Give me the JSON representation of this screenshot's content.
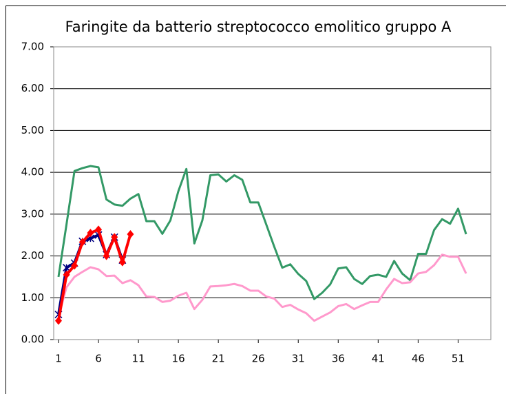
{
  "chart_data": {
    "type": "line",
    "title": "Faringite da batterio streptococco emolitico gruppo A",
    "x": [
      1,
      2,
      3,
      4,
      5,
      6,
      7,
      8,
      9,
      10,
      11,
      12,
      13,
      14,
      15,
      16,
      17,
      18,
      19,
      20,
      21,
      22,
      23,
      24,
      25,
      26,
      27,
      28,
      29,
      30,
      31,
      32,
      33,
      34,
      35,
      36,
      37,
      38,
      39,
      40,
      41,
      42,
      43,
      44,
      45,
      46,
      47,
      48,
      49,
      50,
      51,
      52
    ],
    "series": [
      {
        "color": "#339966",
        "marker": "none",
        "values": [
          1.5,
          2.75,
          4.03,
          4.1,
          4.15,
          4.12,
          3.35,
          3.23,
          3.2,
          3.37,
          3.48,
          2.83,
          2.83,
          2.53,
          2.85,
          3.55,
          4.08,
          2.3,
          2.85,
          3.93,
          3.95,
          3.78,
          3.93,
          3.82,
          3.28,
          3.28,
          2.75,
          2.22,
          1.72,
          1.8,
          1.57,
          1.4,
          0.97,
          1.12,
          1.32,
          1.7,
          1.73,
          1.45,
          1.33,
          1.52,
          1.55,
          1.5,
          1.88,
          1.58,
          1.42,
          2.05,
          2.05,
          2.62,
          2.88,
          2.77,
          3.13,
          2.52
        ]
      },
      {
        "color": "#ff99cc",
        "marker": "none",
        "values": [
          0.55,
          1.25,
          1.5,
          1.62,
          1.73,
          1.68,
          1.52,
          1.53,
          1.35,
          1.42,
          1.3,
          1.03,
          1.02,
          0.9,
          0.93,
          1.05,
          1.12,
          0.73,
          0.95,
          1.27,
          1.28,
          1.3,
          1.33,
          1.28,
          1.17,
          1.17,
          1.03,
          0.98,
          0.78,
          0.83,
          0.72,
          0.63,
          0.45,
          0.55,
          0.65,
          0.8,
          0.85,
          0.73,
          0.82,
          0.9,
          0.9,
          1.2,
          1.45,
          1.35,
          1.37,
          1.58,
          1.62,
          1.78,
          2.03,
          1.98,
          1.98,
          1.58
        ]
      },
      {
        "color": "#000080",
        "marker": "asterisk",
        "values": [
          0.6,
          1.72,
          1.83,
          2.35,
          2.42,
          2.5,
          2.03,
          2.45,
          1.9,
          null,
          null,
          null,
          null,
          null,
          null,
          null,
          null,
          null,
          null,
          null,
          null,
          null,
          null,
          null,
          null,
          null,
          null,
          null,
          null,
          null,
          null,
          null,
          null,
          null,
          null,
          null,
          null,
          null,
          null,
          null,
          null,
          null,
          null,
          null,
          null,
          null,
          null,
          null,
          null,
          null,
          null,
          null
        ]
      },
      {
        "color": "#ff0000",
        "marker": "diamond",
        "values": [
          0.45,
          1.55,
          1.77,
          2.33,
          2.55,
          2.63,
          2.0,
          2.45,
          1.85,
          2.52,
          null,
          null,
          null,
          null,
          null,
          null,
          null,
          null,
          null,
          null,
          null,
          null,
          null,
          null,
          null,
          null,
          null,
          null,
          null,
          null,
          null,
          null,
          null,
          null,
          null,
          null,
          null,
          null,
          null,
          null,
          null,
          null,
          null,
          null,
          null,
          null,
          null,
          null,
          null,
          null,
          null,
          null
        ]
      }
    ],
    "xlim": [
      0.4,
      55.1
    ],
    "xticks": [
      1,
      6,
      11,
      16,
      21,
      26,
      31,
      36,
      41,
      46,
      51
    ],
    "ylim": [
      0,
      7
    ],
    "yticks": [
      {
        "value": 0,
        "label": "0.00"
      },
      {
        "value": 1,
        "label": "1.00"
      },
      {
        "value": 2,
        "label": "2.00"
      },
      {
        "value": 3,
        "label": "3.00"
      },
      {
        "value": 4,
        "label": "4.00"
      },
      {
        "value": 5,
        "label": "5.00"
      },
      {
        "value": 6,
        "label": "6.00"
      },
      {
        "value": 7,
        "label": "7.00"
      }
    ],
    "grid": true
  }
}
